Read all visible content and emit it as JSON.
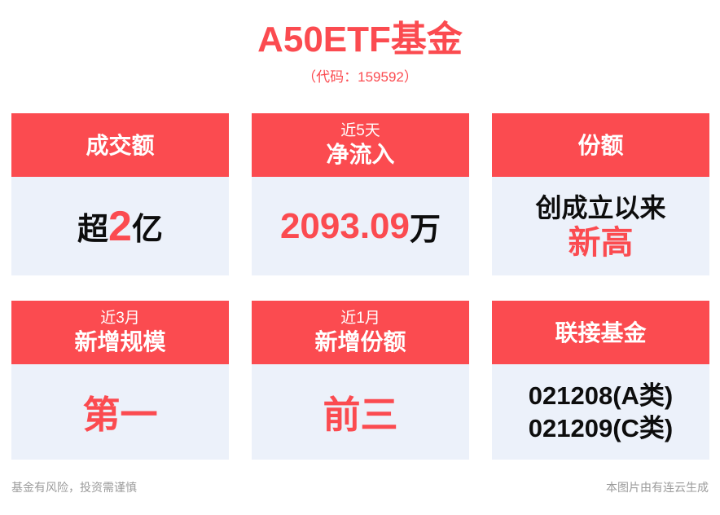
{
  "title": "A50ETF基金",
  "subtitle": "（代码：159592）",
  "colors": {
    "accent_red": "#FB4B50",
    "card_body_bg": "#ECF1FA",
    "value_black": "#0d0d0d",
    "footer_grey": "#9B9B9B",
    "page_bg": "#ffffff"
  },
  "cards": [
    {
      "header_main": "成交额",
      "value": {
        "prefix": "超",
        "highlight": "2",
        "suffix": "亿"
      }
    },
    {
      "header_small": "近5天",
      "header_main": "净流入",
      "value": {
        "highlight": "2093.09",
        "suffix": "万"
      }
    },
    {
      "header_main": "份额",
      "value": {
        "black_line": "创成立以来",
        "red_line": "新高"
      }
    },
    {
      "header_small": "近3月",
      "header_main": "新增规模",
      "value": {
        "highlight": "第一"
      }
    },
    {
      "header_small": "近1月",
      "header_main": "新增份额",
      "value": {
        "highlight": "前三"
      }
    },
    {
      "header_main": "联接基金",
      "value": {
        "line1": "021208(A类)",
        "line2": "021209(C类)"
      }
    }
  ],
  "footer": {
    "left": "基金有风险，投资需谨慎",
    "right": "本图片由有连云生成"
  }
}
